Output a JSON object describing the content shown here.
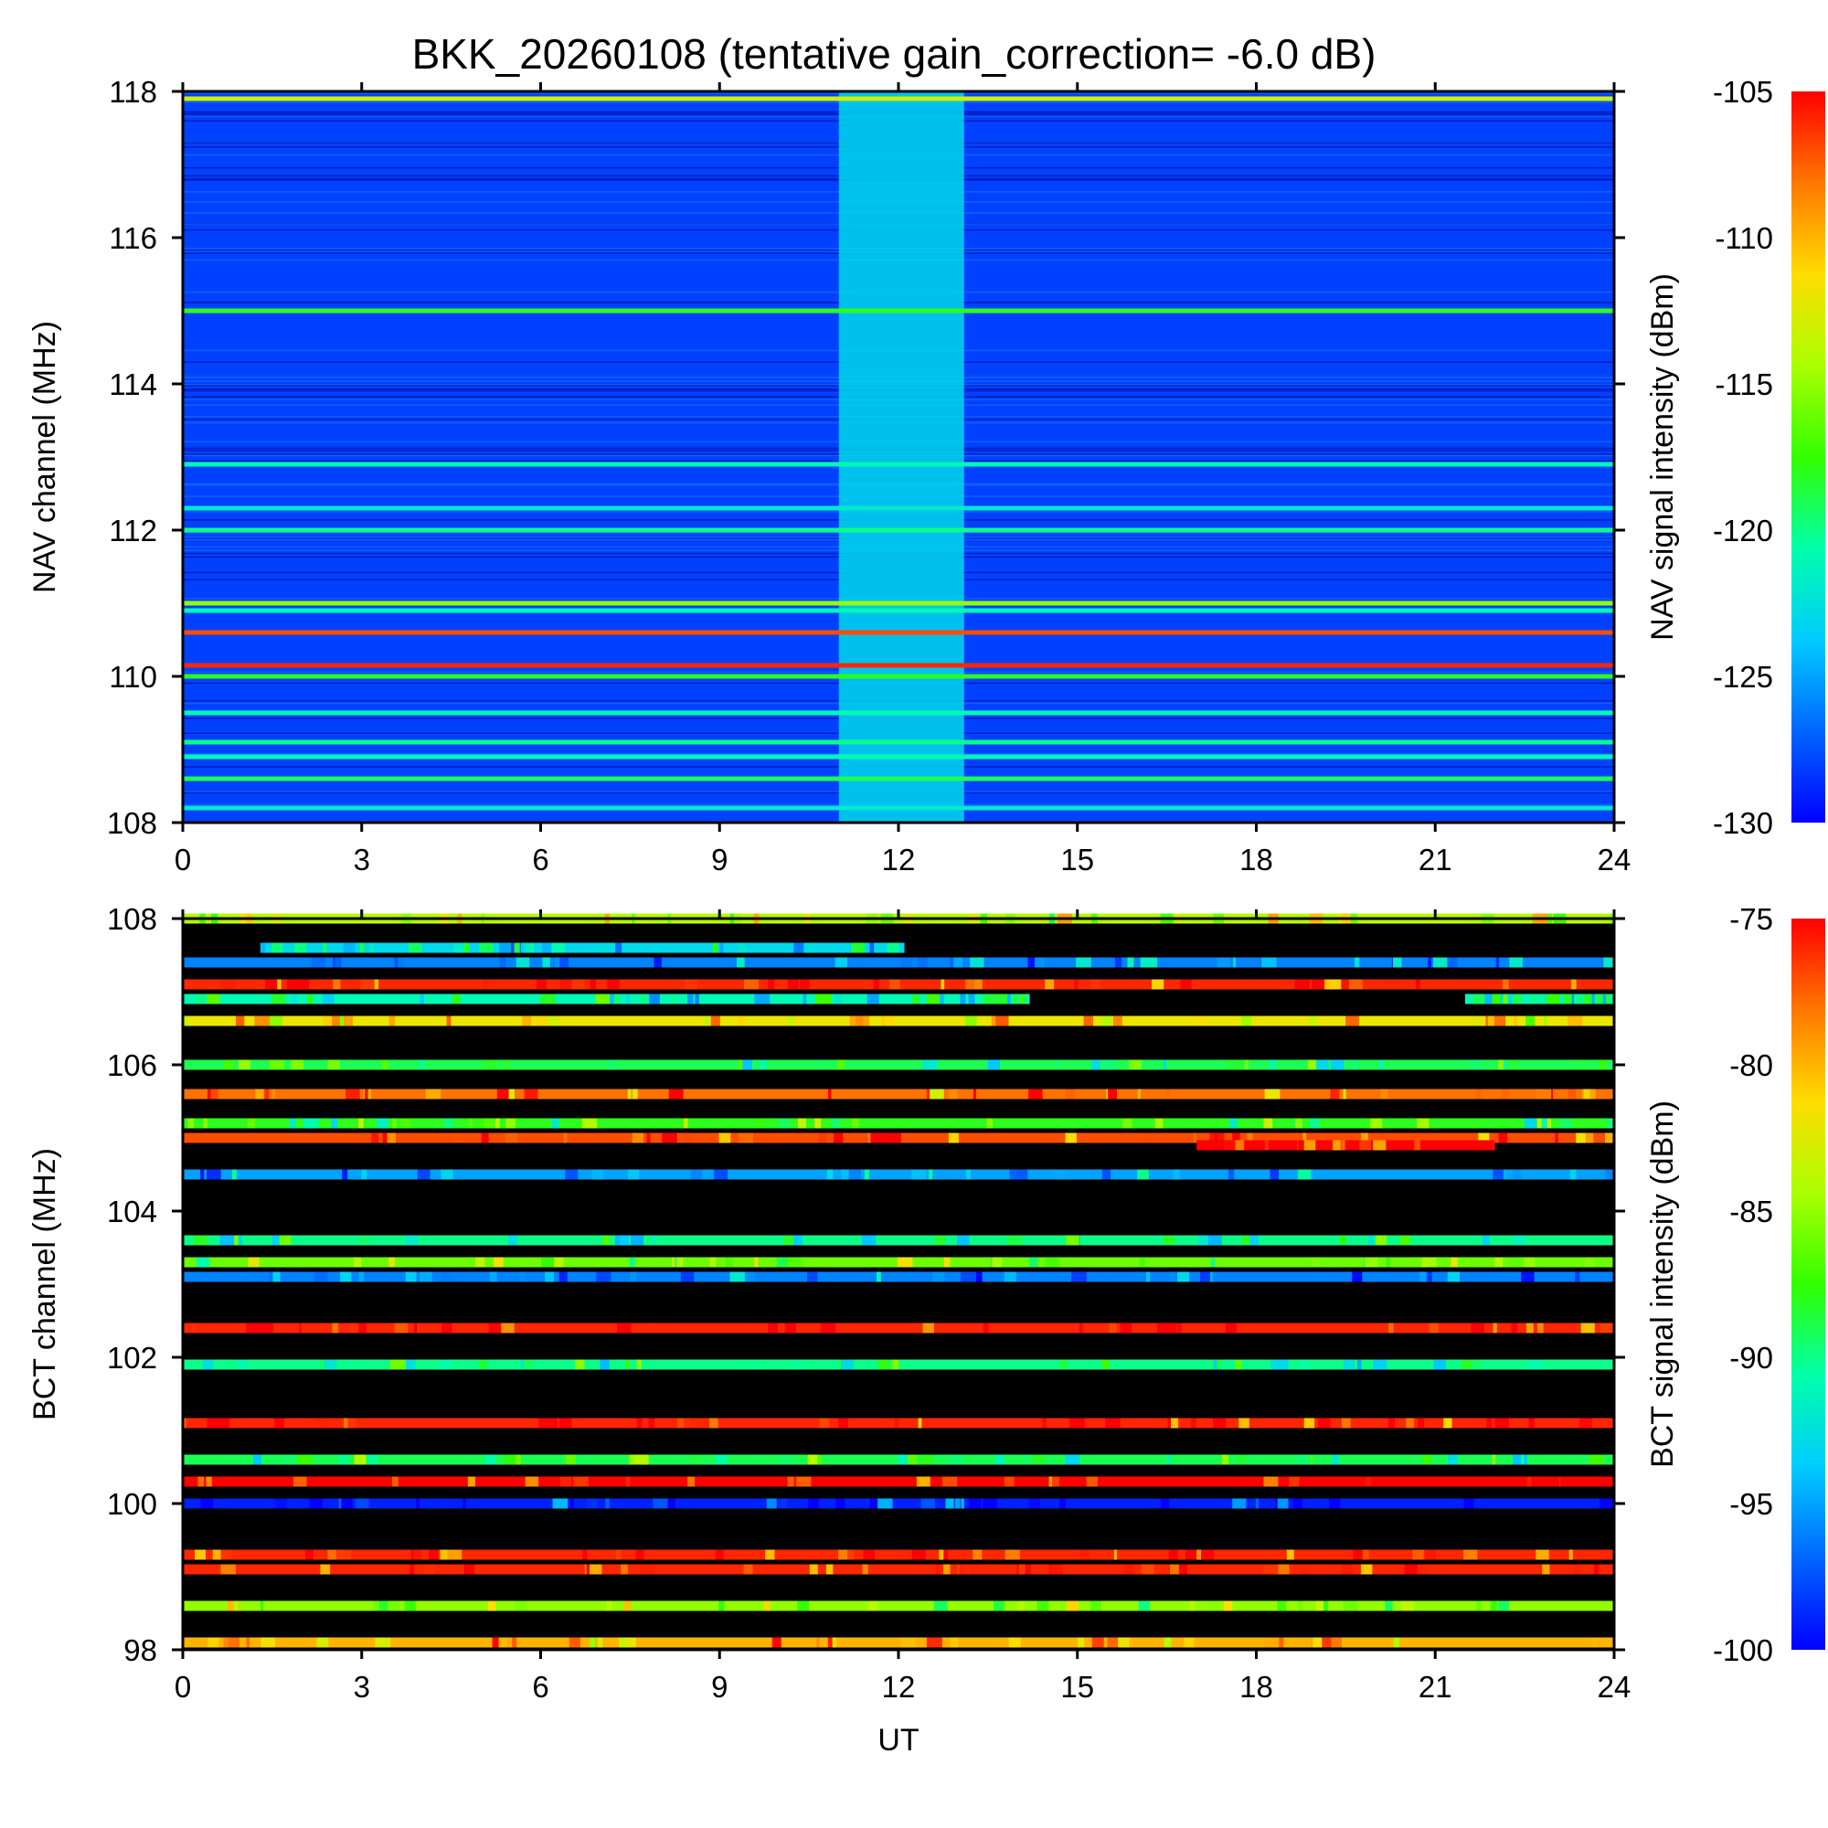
{
  "chart_data": [
    {
      "type": "heatmap",
      "title": "BKK_20260108 (tentative gain_correction= -6.0 dB)",
      "xlabel": "",
      "ylabel": "NAV channel (MHz)",
      "colorbar_label": "NAV signal intensity (dBm)",
      "x_range": [
        0,
        24
      ],
      "x_ticks": [
        "0",
        "3",
        "6",
        "9",
        "12",
        "15",
        "18",
        "21",
        "24"
      ],
      "y_range": [
        108,
        118
      ],
      "y_ticks": [
        "108",
        "110",
        "112",
        "114",
        "116",
        "118"
      ],
      "colorbar_range": [
        -130,
        -105
      ],
      "colorbar_ticks": [
        "-130",
        "-125",
        "-120",
        "-115",
        "-110",
        "-105"
      ],
      "background_level": -128,
      "elevated_interval_ut": [
        11.0,
        13.1
      ],
      "elevated_level": -123,
      "bands": [
        {
          "freq": 117.9,
          "level": -113,
          "ut": [
            0,
            24
          ]
        },
        {
          "freq": 115.0,
          "level": -118,
          "ut": [
            0,
            24
          ]
        },
        {
          "freq": 112.9,
          "level": -121,
          "ut": [
            0,
            24
          ]
        },
        {
          "freq": 112.3,
          "level": -122,
          "ut": [
            0,
            24
          ]
        },
        {
          "freq": 112.0,
          "level": -120,
          "ut": [
            0,
            24
          ]
        },
        {
          "freq": 111.0,
          "level": -115,
          "ut": [
            0,
            24
          ]
        },
        {
          "freq": 110.9,
          "level": -121,
          "ut": [
            0,
            24
          ]
        },
        {
          "freq": 110.6,
          "level": -107,
          "ut": [
            0,
            24
          ]
        },
        {
          "freq": 110.15,
          "level": -106,
          "ut": [
            0,
            24
          ]
        },
        {
          "freq": 110.0,
          "level": -118,
          "ut": [
            0,
            24
          ]
        },
        {
          "freq": 109.5,
          "level": -121,
          "ut": [
            0,
            24
          ]
        },
        {
          "freq": 109.1,
          "level": -120,
          "ut": [
            0,
            24
          ]
        },
        {
          "freq": 108.9,
          "level": -121,
          "ut": [
            0,
            24
          ]
        },
        {
          "freq": 108.6,
          "level": -119,
          "ut": [
            0,
            24
          ]
        },
        {
          "freq": 108.2,
          "level": -122,
          "ut": [
            0,
            24
          ]
        }
      ]
    },
    {
      "type": "heatmap",
      "title": "",
      "xlabel": "UT",
      "ylabel": "BCT channel (MHz)",
      "colorbar_label": "BCT signal intensity (dBm)",
      "x_range": [
        0,
        24
      ],
      "x_ticks": [
        "0",
        "3",
        "6",
        "9",
        "12",
        "15",
        "18",
        "21",
        "24"
      ],
      "y_range": [
        98,
        108
      ],
      "y_ticks": [
        "98",
        "100",
        "102",
        "104",
        "106",
        "108"
      ],
      "colorbar_range": [
        -100,
        -75
      ],
      "colorbar_ticks": [
        "-100",
        "-95",
        "-90",
        "-85",
        "-80",
        "-75"
      ],
      "no_signal_color": "#000000",
      "bands": [
        {
          "freq": 108.0,
          "level": -84,
          "ut": [
            0,
            24
          ]
        },
        {
          "freq": 107.6,
          "level": -93,
          "ut": [
            1.3,
            12.1
          ]
        },
        {
          "freq": 107.4,
          "level": -96,
          "ut": [
            0,
            24
          ]
        },
        {
          "freq": 107.1,
          "level": -76,
          "ut": [
            0,
            24
          ]
        },
        {
          "freq": 106.9,
          "level": -91,
          "ut": [
            0,
            14.2
          ]
        },
        {
          "freq": 106.9,
          "level": -91,
          "ut": [
            21.5,
            24
          ]
        },
        {
          "freq": 106.6,
          "level": -82,
          "ut": [
            0,
            24
          ]
        },
        {
          "freq": 106.0,
          "level": -89,
          "ut": [
            0,
            24
          ]
        },
        {
          "freq": 105.6,
          "level": -78,
          "ut": [
            0,
            24
          ]
        },
        {
          "freq": 105.2,
          "level": -88,
          "ut": [
            0,
            24
          ]
        },
        {
          "freq": 105.0,
          "level": -77,
          "ut": [
            0,
            24
          ]
        },
        {
          "freq": 104.9,
          "level": -75,
          "ut": [
            17.0,
            22.0
          ]
        },
        {
          "freq": 104.5,
          "level": -95,
          "ut": [
            0,
            24
          ]
        },
        {
          "freq": 103.6,
          "level": -90,
          "ut": [
            0,
            24
          ]
        },
        {
          "freq": 103.3,
          "level": -86,
          "ut": [
            0,
            24
          ]
        },
        {
          "freq": 103.1,
          "level": -96,
          "ut": [
            0,
            24
          ]
        },
        {
          "freq": 102.4,
          "level": -76,
          "ut": [
            0,
            24
          ]
        },
        {
          "freq": 101.9,
          "level": -90,
          "ut": [
            0,
            24
          ]
        },
        {
          "freq": 101.1,
          "level": -76,
          "ut": [
            0,
            24
          ]
        },
        {
          "freq": 100.6,
          "level": -89,
          "ut": [
            0,
            24
          ]
        },
        {
          "freq": 100.3,
          "level": -75,
          "ut": [
            0,
            24
          ]
        },
        {
          "freq": 100.0,
          "level": -99,
          "ut": [
            0,
            24
          ]
        },
        {
          "freq": 99.3,
          "level": -76,
          "ut": [
            0,
            24
          ]
        },
        {
          "freq": 99.1,
          "level": -76,
          "ut": [
            0,
            24
          ]
        },
        {
          "freq": 98.6,
          "level": -85,
          "ut": [
            0,
            24
          ]
        },
        {
          "freq": 98.1,
          "level": -80,
          "ut": [
            0,
            24
          ]
        }
      ]
    }
  ]
}
